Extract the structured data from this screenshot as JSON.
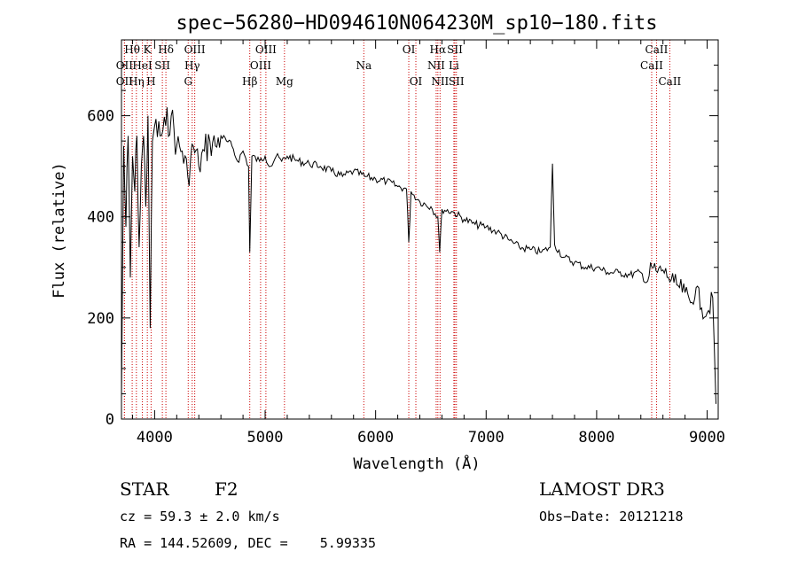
{
  "chart_data": {
    "type": "line",
    "title": "spec−56280−HD094610N064230M_sp10−180.fits",
    "xlabel": "Wavelength (Å)",
    "ylabel": "Flux (relative)",
    "xlim": [
      3700,
      9100
    ],
    "ylim": [
      0,
      750
    ],
    "x_ticks": [
      4000,
      5000,
      6000,
      7000,
      8000,
      9000
    ],
    "y_ticks": [
      0,
      200,
      400,
      600
    ],
    "series": [
      {
        "name": "flux",
        "x": [
          3700,
          3720,
          3740,
          3760,
          3780,
          3800,
          3820,
          3840,
          3860,
          3880,
          3900,
          3920,
          3940,
          3960,
          3980,
          4000,
          4050,
          4100,
          4150,
          4200,
          4250,
          4300,
          4350,
          4400,
          4450,
          4500,
          4550,
          4600,
          4650,
          4700,
          4750,
          4800,
          4850,
          4861,
          4880,
          4950,
          5000,
          5050,
          5100,
          5150,
          5200,
          5300,
          5400,
          5500,
          5600,
          5700,
          5800,
          5900,
          6000,
          6100,
          6200,
          6280,
          6300,
          6320,
          6400,
          6500,
          6563,
          6580,
          6600,
          6700,
          6800,
          6900,
          7000,
          7100,
          7200,
          7300,
          7400,
          7500,
          7580,
          7600,
          7620,
          7700,
          7800,
          7900,
          8000,
          8100,
          8200,
          8300,
          8400,
          8450,
          8500,
          8550,
          8600,
          8650,
          8700,
          8750,
          8800,
          8850,
          8900,
          8950,
          9000,
          9050,
          9080
        ],
        "y": [
          40,
          540,
          380,
          560,
          280,
          520,
          450,
          560,
          340,
          500,
          560,
          420,
          600,
          180,
          550,
          580,
          560,
          580,
          600,
          540,
          530,
          480,
          540,
          500,
          530,
          550,
          540,
          560,
          550,
          540,
          510,
          530,
          500,
          330,
          520,
          510,
          520,
          500,
          520,
          510,
          520,
          510,
          505,
          500,
          490,
          480,
          490,
          480,
          475,
          470,
          460,
          455,
          350,
          450,
          430,
          420,
          400,
          330,
          415,
          410,
          395,
          385,
          380,
          370,
          355,
          340,
          335,
          330,
          340,
          505,
          345,
          320,
          310,
          300,
          300,
          290,
          290,
          285,
          290,
          270,
          300,
          290,
          295,
          280,
          270,
          260,
          250,
          230,
          260,
          220,
          210,
          240,
          30
        ]
      }
    ],
    "lines": [
      {
        "label": "Hθ",
        "x": 3797
      },
      {
        "label": "K",
        "x": 3934
      },
      {
        "label": "Hδ",
        "x": 4102
      },
      {
        "label": "OIII",
        "x": 4363
      },
      {
        "label": "OIII",
        "x": 5007
      },
      {
        "label": "OI",
        "x": 6300
      },
      {
        "label": "Hα",
        "x": 6563
      },
      {
        "label": "SII",
        "x": 6717
      },
      {
        "label": "CaII",
        "x": 8542
      },
      {
        "label": "OII",
        "x": 3727
      },
      {
        "label": "HeI",
        "x": 3889
      },
      {
        "label": "SII",
        "x": 4070
      },
      {
        "label": "Hγ",
        "x": 4340
      },
      {
        "label": "OIII",
        "x": 4959
      },
      {
        "label": "Na",
        "x": 5893
      },
      {
        "label": "NII",
        "x": 6548
      },
      {
        "label": "Li",
        "x": 6708
      },
      {
        "label": "CaII",
        "x": 8498
      },
      {
        "label": "OII",
        "x": 3727
      },
      {
        "label": "Hη",
        "x": 3835
      },
      {
        "label": "H",
        "x": 3968
      },
      {
        "label": "G",
        "x": 4304
      },
      {
        "label": "Hβ",
        "x": 4861
      },
      {
        "label": "Mg",
        "x": 5175
      },
      {
        "label": "OI",
        "x": 6364
      },
      {
        "label": "NII",
        "x": 6583
      },
      {
        "label": "SII",
        "x": 6731
      },
      {
        "label": "CaII",
        "x": 8662
      }
    ],
    "line_color": "#cc0000",
    "spectrum_color": "#000000"
  },
  "info": {
    "object_class": "STAR",
    "subclass": "F2",
    "survey": "LAMOST DR3",
    "cz": "cz = 59.3 ± 2.0 km/s",
    "obs_date": "Obs−Date: 20121218",
    "coords": "RA = 144.52609, DEC =    5.99335"
  }
}
